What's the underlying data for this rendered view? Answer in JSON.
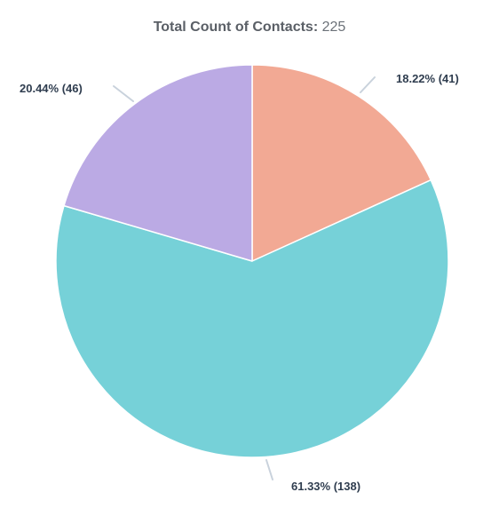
{
  "chart_data": {
    "type": "pie",
    "title_label": "Total Count of Contacts:",
    "title_value": "225",
    "total": 225,
    "slices": [
      {
        "value": 41,
        "percent_label": "18.22% (41)",
        "color": "#f2a994"
      },
      {
        "value": 138,
        "percent_label": "61.33% (138)",
        "color": "#76d1d8"
      },
      {
        "value": 46,
        "percent_label": "20.44% (46)",
        "color": "#bbaae4"
      }
    ],
    "legend": "none",
    "start_angle": "12 o'clock, clockwise"
  }
}
